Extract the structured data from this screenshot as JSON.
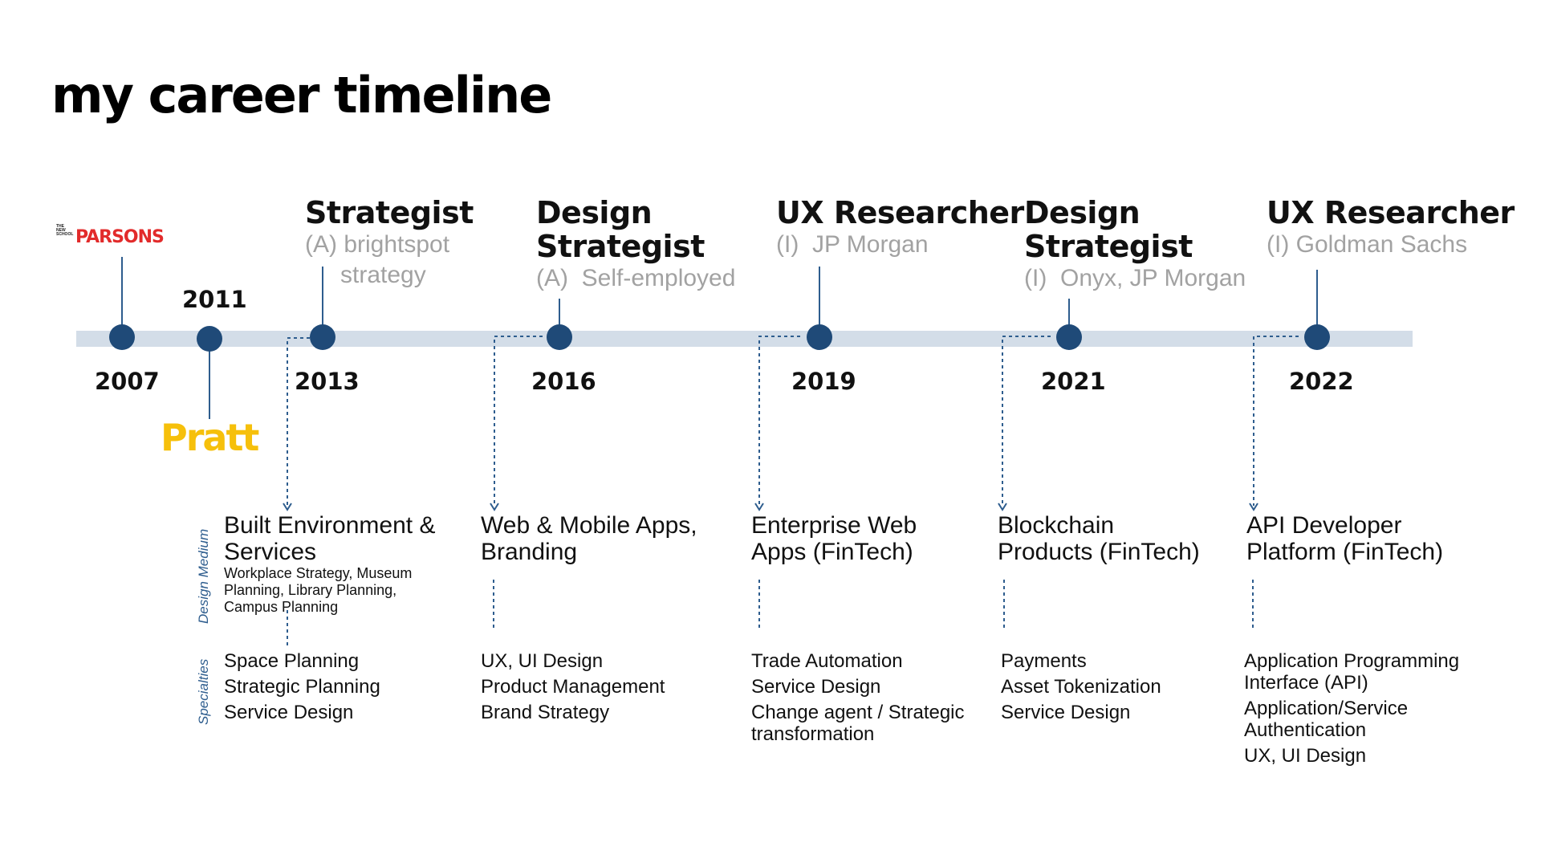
{
  "title": "my career timeline",
  "colors": {
    "track": "#d3dde8",
    "node": "#1f4a78",
    "org_text": "#a2a2a2",
    "side_label": "#2e5d8e",
    "parsons": "#e22b2b",
    "pratt": "#f6c00b"
  },
  "schools": {
    "parsons": {
      "small": [
        "THE",
        "NEW",
        "SCHOOL"
      ],
      "name": "PARSONS",
      "icon": "parsons-logo"
    },
    "pratt": {
      "name": "Pratt",
      "icon": "pratt-logo"
    }
  },
  "years": {
    "y2007": "2007",
    "y2011": "2011",
    "y2013": "2013",
    "y2016": "2016",
    "y2019": "2019",
    "y2021": "2021",
    "y2022": "2022"
  },
  "roles": {
    "r2013": {
      "title": [
        "Strategist"
      ],
      "org": [
        "(A) brightspot",
        "strategy"
      ]
    },
    "r2016": {
      "title": [
        "Design",
        "Strategist"
      ],
      "org": [
        "(A)  Self-employed"
      ]
    },
    "r2019": {
      "title": [
        "UX Researcher"
      ],
      "org": [
        "(I)  JP Morgan"
      ]
    },
    "r2021": {
      "title": [
        "Design",
        "Strategist"
      ],
      "org": [
        "(I)  Onyx, JP Morgan"
      ]
    },
    "r2022": {
      "title": [
        "UX Researcher"
      ],
      "org": [
        "(I) Goldman Sachs"
      ]
    }
  },
  "side_labels": {
    "medium": "Design Medium",
    "specialties": "Specialties"
  },
  "mediums": {
    "m2013": {
      "title": [
        "Built Environment &",
        "Services"
      ],
      "detail": [
        "Workplace Strategy, Museum",
        "Planning, Library Planning,",
        "Campus Planning"
      ]
    },
    "m2016": {
      "title": [
        "Web & Mobile Apps,",
        "Branding"
      ]
    },
    "m2019": {
      "title": [
        "Enterprise Web",
        "Apps (FinTech)"
      ]
    },
    "m2021": {
      "title": [
        "Blockchain",
        "Products (FinTech)"
      ]
    },
    "m2022": {
      "title": [
        "API Developer",
        "Platform (FinTech)"
      ]
    }
  },
  "specialties": {
    "s2013": [
      "Space Planning",
      "Strategic Planning",
      "Service Design"
    ],
    "s2016": [
      "UX, UI Design",
      "Product Management",
      "Brand Strategy"
    ],
    "s2019": [
      "Trade Automation",
      "Service Design",
      "Change agent / Strategic transformation"
    ],
    "s2021": [
      "Payments",
      "Asset Tokenization",
      "Service Design"
    ],
    "s2022": [
      "Application Programming Interface (API)",
      "Application/Service Authentication",
      "UX, UI Design"
    ]
  }
}
